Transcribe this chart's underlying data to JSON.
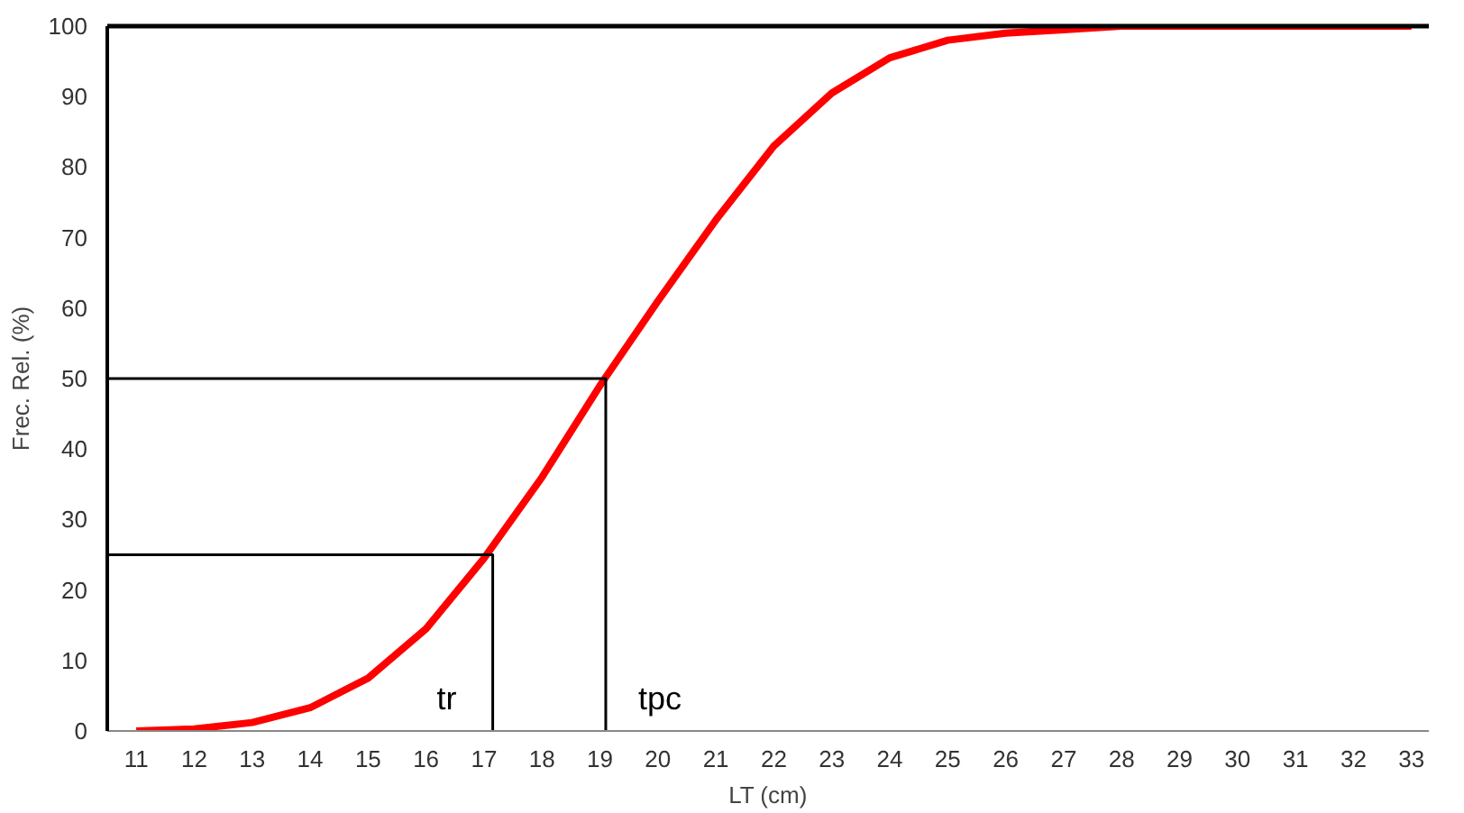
{
  "chart_data": {
    "type": "line",
    "xlabel": "LT (cm)",
    "ylabel": "Frec. Rel. (%)",
    "x": [
      11,
      12,
      13,
      14,
      15,
      16,
      17,
      18,
      19,
      20,
      21,
      22,
      23,
      24,
      25,
      26,
      27,
      28,
      29,
      30,
      31,
      32,
      33
    ],
    "series": [
      {
        "color": "#ff0000",
        "values": [
          0,
          0.3,
          1.2,
          3.3,
          7.5,
          14.5,
          24.5,
          36,
          49,
          61,
          72.5,
          83,
          90.5,
          95.5,
          98,
          99,
          99.5,
          100,
          100,
          100,
          100,
          100,
          100
        ]
      },
      {
        "color": "#000000",
        "type": "line",
        "x": [
          10.5,
          17.15,
          17.15
        ],
        "values": [
          25,
          25,
          0
        ]
      },
      {
        "color": "#000000",
        "type": "line",
        "x": [
          10.5,
          19.1,
          19.1
        ],
        "values": [
          50,
          50,
          0
        ]
      }
    ],
    "annotations": [
      "tr",
      "tpc"
    ],
    "xlim": [
      10.5,
      33.3
    ],
    "xticks": [
      11,
      12,
      13,
      14,
      15,
      16,
      17,
      18,
      19,
      20,
      21,
      22,
      23,
      24,
      25,
      26,
      27,
      28,
      29,
      30,
      31,
      32,
      33
    ],
    "ylim": [
      0,
      100
    ],
    "yticks": [
      0,
      10,
      20,
      30,
      40,
      50,
      60,
      70,
      80,
      90,
      100
    ],
    "grid": false,
    "marker": "none",
    "line_style": "solid"
  }
}
